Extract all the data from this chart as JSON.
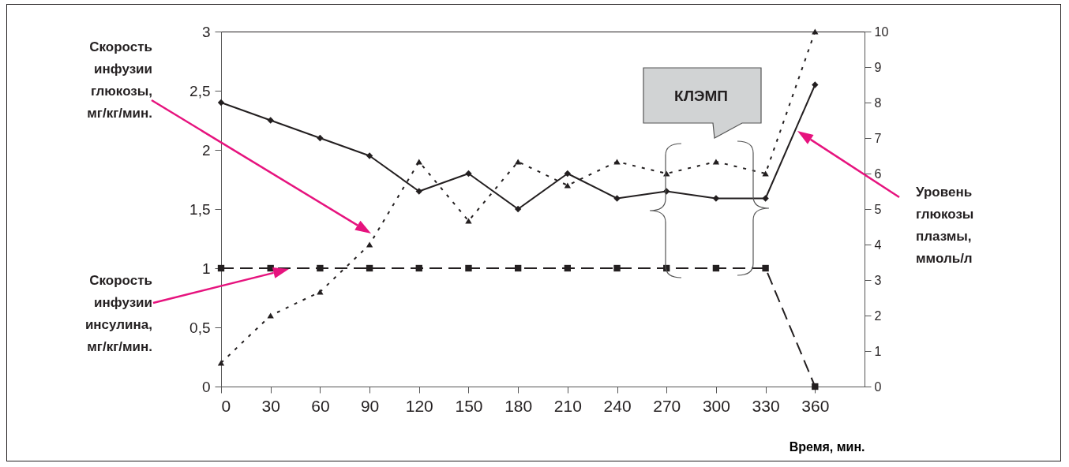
{
  "chart_data": {
    "type": "line",
    "xlabel": "Время, мин.",
    "x": [
      0,
      30,
      60,
      90,
      120,
      150,
      180,
      210,
      240,
      270,
      300,
      330,
      360
    ],
    "xlim": [
      0,
      390
    ],
    "xticks": [
      0,
      30,
      60,
      90,
      120,
      150,
      180,
      210,
      240,
      270,
      300,
      330,
      360
    ],
    "ylim": [
      0,
      3
    ],
    "yticks": [
      0,
      {
        "value": 0.5,
        "label": "0,5"
      },
      1,
      {
        "value": 1.5,
        "label": "1,5"
      },
      2,
      {
        "value": 2.5,
        "label": "2,5"
      },
      3
    ],
    "y2lim": [
      0,
      10
    ],
    "y2ticks": [
      0,
      1,
      2,
      3,
      4,
      5,
      6,
      7,
      8,
      9,
      10
    ],
    "grid": false,
    "series": [
      {
        "name": "Скорость инфузии глюкозы, мг/кг/мин.",
        "color": "#231f20",
        "marker": "triangle",
        "line_style": "dotted",
        "values": [
          0.2,
          0.6,
          0.8,
          1.2,
          1.9,
          1.4,
          1.9,
          1.7,
          1.9,
          1.8,
          1.9,
          1.8,
          3.0
        ]
      },
      {
        "name": "Скорость инфузии инсулина, мг/кг/мин.",
        "color": "#231f20",
        "marker": "square",
        "line_style": "dashed",
        "values": [
          1,
          1,
          1,
          1,
          1,
          1,
          1,
          1,
          1,
          1,
          1,
          1,
          0
        ]
      },
      {
        "name": "Уровень глюкозы плазмы, ммоль/л",
        "color": "#231f20",
        "marker": "diamond",
        "line_style": "solid",
        "axis": "y2",
        "values": [
          8.0,
          7.5,
          7.0,
          6.5,
          5.5,
          6.0,
          5.0,
          6.0,
          5.3,
          5.5,
          5.3,
          5.3,
          8.5
        ]
      }
    ],
    "annotations": [
      "КЛЭМП"
    ]
  }
}
